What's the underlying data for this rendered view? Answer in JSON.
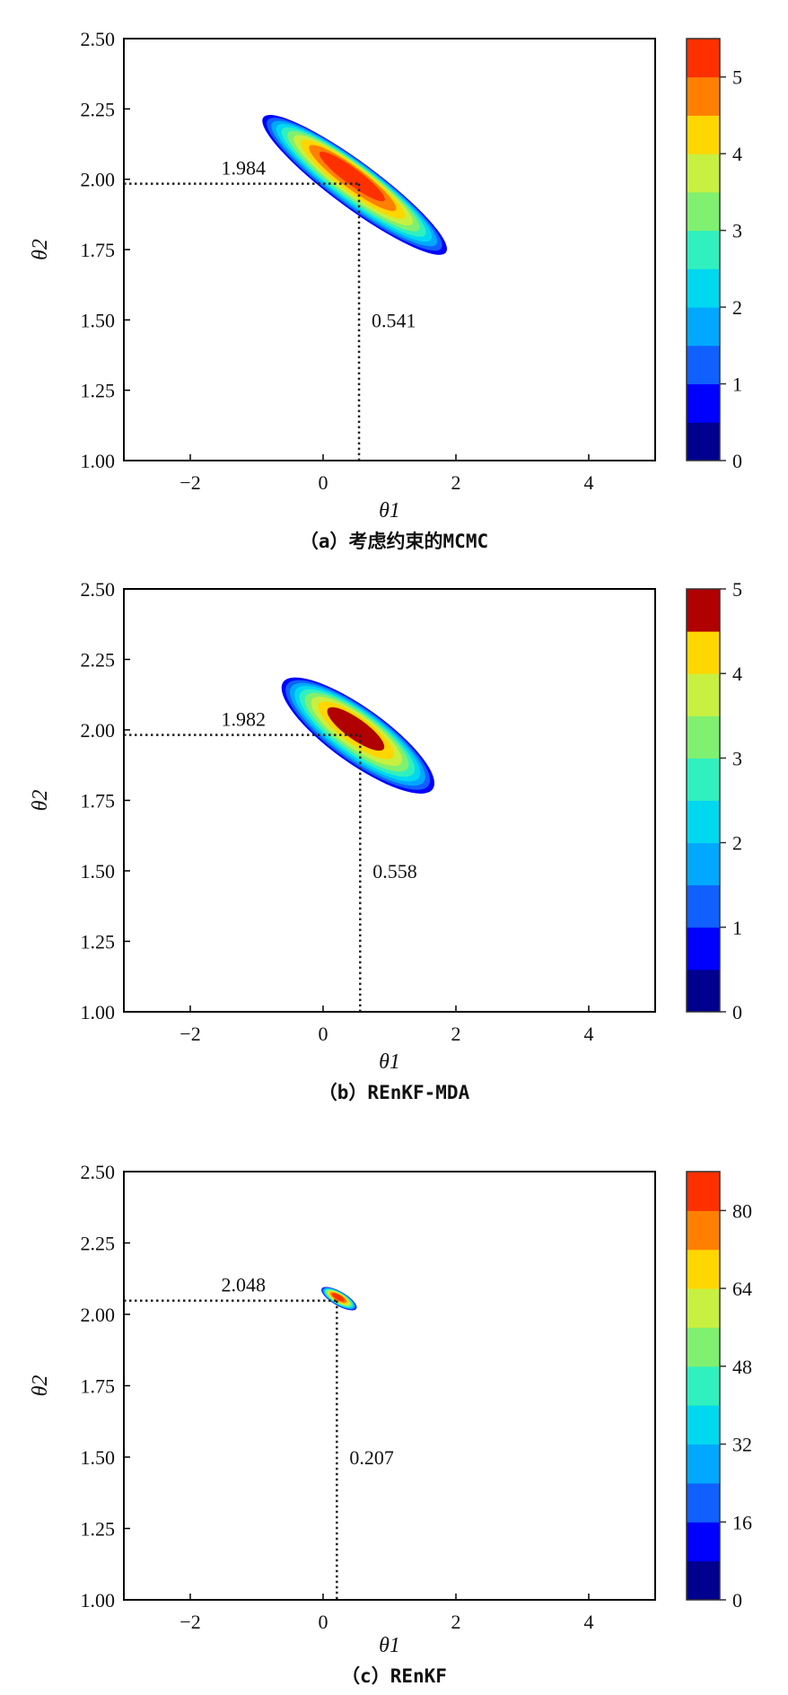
{
  "chart_data": [
    {
      "type": "contour",
      "caption": "（a）考虑约束的MCMC",
      "xlabel": "θ1",
      "ylabel": "θ2",
      "xlim": [
        -3,
        5
      ],
      "ylim": [
        1.0,
        2.5
      ],
      "xticks": [
        -2,
        0,
        2,
        4
      ],
      "xtick_labels": [
        "−2",
        "0",
        "2",
        "4"
      ],
      "yticks": [
        1.0,
        1.25,
        1.5,
        1.75,
        2.0,
        2.25,
        2.5
      ],
      "ytick_labels": [
        "1.00",
        "1.25",
        "1.50",
        "1.75",
        "2.00",
        "2.25",
        "2.50"
      ],
      "colorbar": {
        "min": 0,
        "max": 5.5,
        "step": 0.5,
        "ticks": [
          0,
          1,
          2,
          3,
          4,
          5
        ],
        "tick_labels": [
          "0",
          "1",
          "2",
          "3",
          "4",
          "5"
        ]
      },
      "density_peak": 5.3,
      "contour_extent": {
        "start": [
          -0.9,
          2.22
        ],
        "end": [
          1.85,
          1.74
        ],
        "minor_ratio": 0.2
      },
      "estimate": {
        "theta1": 0.541,
        "theta2": 1.984,
        "theta1_label": "0.541",
        "theta2_label": "1.984"
      }
    },
    {
      "type": "contour",
      "caption": "（b）REnKF-MDA",
      "xlabel": "θ1",
      "ylabel": "θ2",
      "xlim": [
        -3,
        5
      ],
      "ylim": [
        1.0,
        2.5
      ],
      "xticks": [
        -2,
        0,
        2,
        4
      ],
      "xtick_labels": [
        "−2",
        "0",
        "2",
        "4"
      ],
      "yticks": [
        1.0,
        1.25,
        1.5,
        1.75,
        2.0,
        2.25,
        2.5
      ],
      "ytick_labels": [
        "1.00",
        "1.25",
        "1.50",
        "1.75",
        "2.00",
        "2.25",
        "2.50"
      ],
      "colorbar": {
        "min": 0,
        "max": 5.0,
        "step": 0.5,
        "ticks": [
          0,
          1,
          2,
          3,
          4,
          5
        ],
        "tick_labels": [
          "0",
          "1",
          "2",
          "3",
          "4",
          "5"
        ]
      },
      "density_peak": 4.9,
      "contour_extent": {
        "start": [
          -0.6,
          2.17
        ],
        "end": [
          1.65,
          1.79
        ],
        "minor_ratio": 0.3
      },
      "estimate": {
        "theta1": 0.558,
        "theta2": 1.982,
        "theta1_label": "0.558",
        "theta2_label": "1.982"
      }
    },
    {
      "type": "contour",
      "caption": "（c）REnKF",
      "xlabel": "θ1",
      "ylabel": "θ2",
      "xlim": [
        -3,
        5
      ],
      "ylim": [
        1.0,
        2.5
      ],
      "xticks": [
        -2,
        0,
        2,
        4
      ],
      "xtick_labels": [
        "−2",
        "0",
        "2",
        "4"
      ],
      "yticks": [
        1.0,
        1.25,
        1.5,
        1.75,
        2.0,
        2.25,
        2.5
      ],
      "ytick_labels": [
        "1.00",
        "1.25",
        "1.50",
        "1.75",
        "2.00",
        "2.25",
        "2.50"
      ],
      "colorbar": {
        "min": 0,
        "max": 88,
        "step": 8,
        "ticks": [
          0,
          16,
          32,
          48,
          64,
          80
        ],
        "tick_labels": [
          "0",
          "16",
          "32",
          "48",
          "64",
          "80"
        ]
      },
      "density_peak": 85,
      "contour_extent": {
        "start": [
          -0.02,
          2.09
        ],
        "end": [
          0.5,
          2.02
        ],
        "minor_ratio": 0.35
      },
      "estimate": {
        "theta1": 0.207,
        "theta2": 2.048,
        "theta1_label": "0.207",
        "theta2_label": "2.048"
      }
    }
  ],
  "colors": [
    "#00008f",
    "#0000ff",
    "#1060ff",
    "#00a8ff",
    "#00d8f0",
    "#30f0c0",
    "#80f070",
    "#c8f040",
    "#ffd700",
    "#ff8000",
    "#ff3000",
    "#b00000"
  ]
}
